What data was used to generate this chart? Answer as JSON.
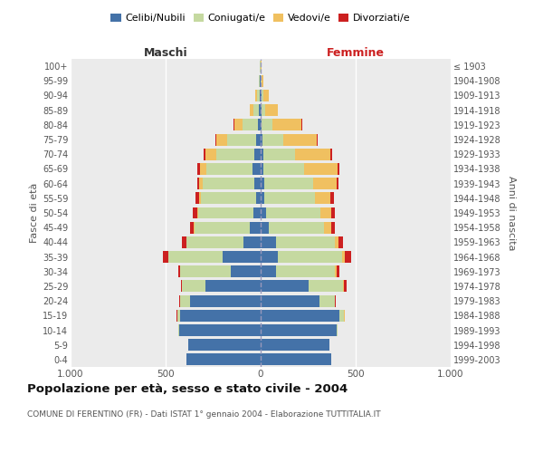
{
  "age_groups": [
    "0-4",
    "5-9",
    "10-14",
    "15-19",
    "20-24",
    "25-29",
    "30-34",
    "35-39",
    "40-44",
    "45-49",
    "50-54",
    "55-59",
    "60-64",
    "65-69",
    "70-74",
    "75-79",
    "80-84",
    "85-89",
    "90-94",
    "95-99",
    "100+"
  ],
  "birth_years": [
    "1999-2003",
    "1994-1998",
    "1989-1993",
    "1984-1988",
    "1979-1983",
    "1974-1978",
    "1969-1973",
    "1964-1968",
    "1959-1963",
    "1954-1958",
    "1949-1953",
    "1944-1948",
    "1939-1943",
    "1934-1938",
    "1929-1933",
    "1924-1928",
    "1919-1923",
    "1914-1918",
    "1909-1913",
    "1904-1908",
    "≤ 1903"
  ],
  "maschi_celibi": [
    390,
    380,
    430,
    425,
    370,
    290,
    155,
    200,
    90,
    55,
    40,
    25,
    35,
    45,
    35,
    25,
    15,
    8,
    5,
    3,
    2
  ],
  "maschi_coniugati": [
    1,
    2,
    5,
    15,
    55,
    125,
    270,
    285,
    300,
    295,
    290,
    290,
    270,
    240,
    200,
    150,
    80,
    30,
    15,
    5,
    2
  ],
  "maschi_vedovi": [
    0,
    0,
    0,
    0,
    0,
    1,
    1,
    2,
    2,
    3,
    5,
    10,
    20,
    35,
    55,
    60,
    45,
    20,
    8,
    2,
    0
  ],
  "maschi_divorziati": [
    0,
    0,
    0,
    1,
    2,
    5,
    8,
    25,
    20,
    18,
    20,
    18,
    10,
    12,
    8,
    5,
    2,
    0,
    0,
    0,
    0
  ],
  "femmine_nubili": [
    370,
    360,
    400,
    415,
    310,
    250,
    80,
    90,
    80,
    45,
    30,
    18,
    18,
    15,
    12,
    8,
    5,
    5,
    3,
    2,
    1
  ],
  "femmine_coniugate": [
    1,
    2,
    5,
    25,
    80,
    185,
    310,
    340,
    310,
    290,
    285,
    270,
    260,
    215,
    170,
    110,
    55,
    20,
    10,
    3,
    1
  ],
  "femmine_vedove": [
    0,
    0,
    0,
    1,
    2,
    5,
    8,
    15,
    20,
    35,
    55,
    80,
    120,
    175,
    185,
    175,
    155,
    65,
    30,
    8,
    3
  ],
  "femmine_divorziate": [
    0,
    0,
    0,
    1,
    3,
    10,
    18,
    30,
    25,
    20,
    22,
    18,
    12,
    10,
    8,
    5,
    3,
    2,
    1,
    0,
    0
  ],
  "color_celibi": "#4472a8",
  "color_coniugati": "#c5d9a0",
  "color_vedovi": "#f0c060",
  "color_divorziati": "#cc2020",
  "bg_color": "#ebebeb",
  "title": "Popolazione per età, sesso e stato civile - 2004",
  "subtitle": "COMUNE DI FERENTINO (FR) - Dati ISTAT 1° gennaio 2004 - Elaborazione TUTTITALIA.IT",
  "maschi_label": "Maschi",
  "femmine_label": "Femmine",
  "ylabel_left": "Fasce di età",
  "ylabel_right": "Anni di nascita",
  "legend_labels": [
    "Celibi/Nubili",
    "Coniugati/e",
    "Vedovi/e",
    "Divorziati/e"
  ],
  "xlim": 1000
}
